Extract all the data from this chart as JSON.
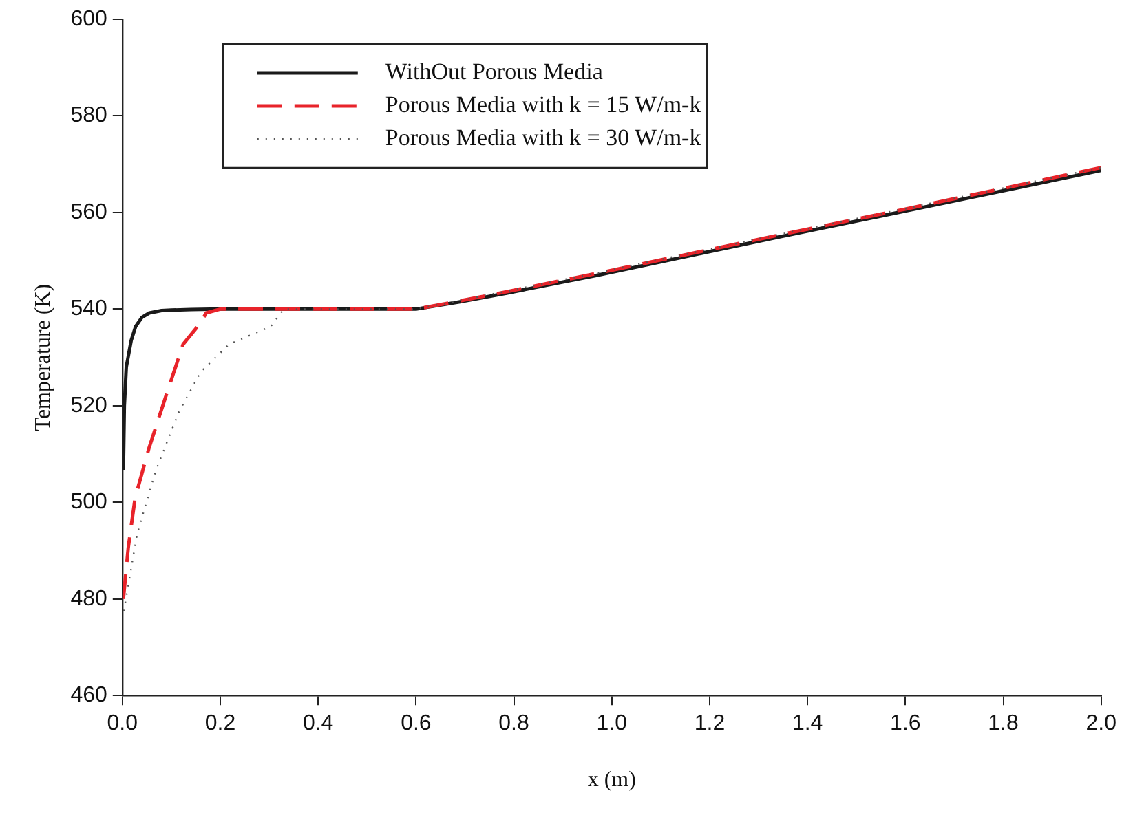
{
  "chart_data": {
    "type": "line",
    "xlabel": "x (m)",
    "ylabel": "Temperature (K)",
    "xlim": [
      0,
      2
    ],
    "ylim": [
      460,
      600
    ],
    "xticks": [
      {
        "value": 0,
        "label": "0.0"
      },
      {
        "value": 0.2,
        "label": "0.2"
      },
      {
        "value": 0.4,
        "label": "0.4"
      },
      {
        "value": 0.6,
        "label": "0.6"
      },
      {
        "value": 0.8,
        "label": "0.8"
      },
      {
        "value": 1,
        "label": "1.0"
      },
      {
        "value": 1.2,
        "label": "1.2"
      },
      {
        "value": 1.4,
        "label": "1.4"
      },
      {
        "value": 1.6,
        "label": "1.6"
      },
      {
        "value": 1.8,
        "label": "1.8"
      },
      {
        "value": 2,
        "label": "2.0"
      }
    ],
    "yticks": [
      460,
      480,
      500,
      520,
      540,
      560,
      580,
      600
    ],
    "grid": false,
    "legend": "top left",
    "marker": "none",
    "series": [
      {
        "name": "WithOut Porous Media",
        "color": "#1a1a1a",
        "line_style": "solid",
        "x": [
          0.002,
          0.004,
          0.008,
          0.018,
          0.027,
          0.04,
          0.055,
          0.08,
          0.1,
          0.14,
          0.2,
          0.3,
          0.4,
          0.5,
          0.6,
          0.69,
          0.785,
          0.97,
          1.345,
          1.6,
          2.0
        ],
        "values": [
          506.6,
          520,
          528,
          533.5,
          536.4,
          538.3,
          539.2,
          539.7,
          539.8,
          539.9,
          540,
          540,
          540,
          540,
          540,
          541.5,
          543.3,
          547,
          555,
          560.3,
          568.7
        ]
      },
      {
        "name": "Porous Media with k = 15 W/m-k",
        "color": "#e8232a",
        "line_style": "dashed",
        "x": [
          0.002,
          0.012,
          0.026,
          0.054,
          0.087,
          0.124,
          0.161,
          0.171,
          0.2,
          0.3,
          0.4,
          0.5,
          0.6,
          0.69,
          0.785,
          0.97,
          1.345,
          1.6,
          2.0
        ],
        "values": [
          480,
          490.6,
          500.9,
          511.1,
          521.4,
          532.7,
          537.3,
          539.2,
          540,
          540,
          540,
          540,
          540,
          541.7,
          543.6,
          547.4,
          555.4,
          560.7,
          569.3
        ]
      },
      {
        "name": "Porous Media with k = 30 W/m-k",
        "color": "#555555",
        "line_style": "dotted",
        "x": [
          0.003,
          0.03,
          0.068,
          0.115,
          0.16,
          0.218,
          0.303,
          0.33,
          0.4,
          0.5,
          0.6,
          0.69,
          0.785,
          0.97,
          1.345,
          1.6,
          2.0
        ],
        "values": [
          477.5,
          493.4,
          506.5,
          518.6,
          527,
          532.7,
          536.4,
          540,
          540,
          540,
          540,
          541.8,
          543.7,
          547.5,
          555.5,
          560.8,
          569.3
        ]
      }
    ]
  }
}
